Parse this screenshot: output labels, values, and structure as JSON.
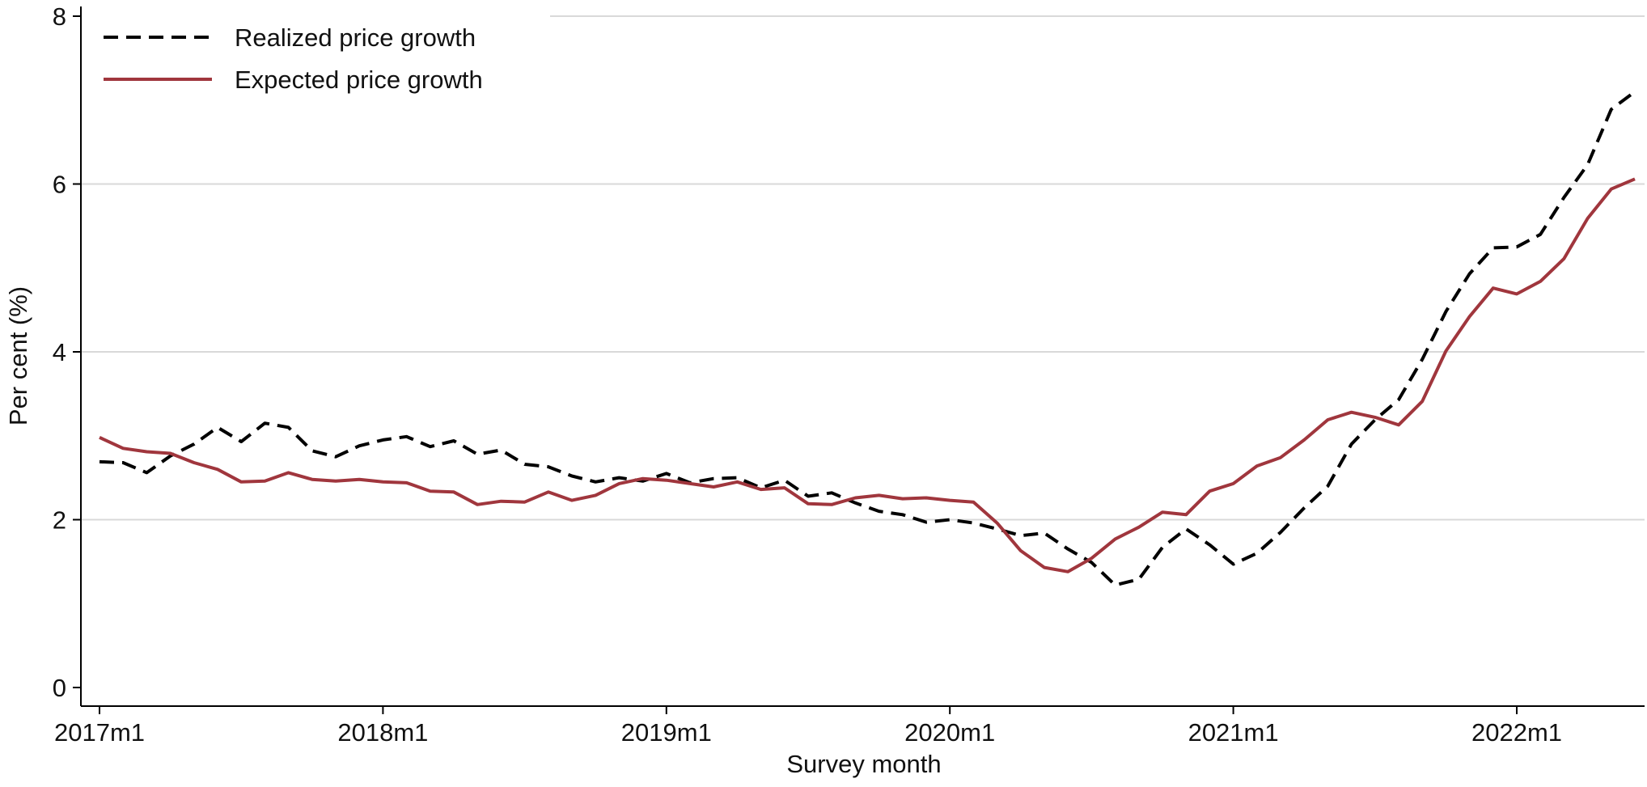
{
  "chart_data": {
    "type": "line",
    "title": "",
    "xlabel": "Survey month",
    "ylabel": "Per cent (%)",
    "ylim": [
      0,
      8
    ],
    "yticks": [
      0,
      2,
      4,
      6,
      8
    ],
    "xlim": [
      "2017-01",
      "2022-06"
    ],
    "xticks": [
      {
        "value": "2017-01",
        "label": "2017m1"
      },
      {
        "value": "2018-01",
        "label": "2018m1"
      },
      {
        "value": "2019-01",
        "label": "2019m1"
      },
      {
        "value": "2020-01",
        "label": "2020m1"
      },
      {
        "value": "2021-01",
        "label": "2021m1"
      },
      {
        "value": "2022-01",
        "label": "2022m1"
      }
    ],
    "grid": "horizontal",
    "legend_position": "top-left",
    "x": [
      "2017-01",
      "2017-02",
      "2017-03",
      "2017-04",
      "2017-05",
      "2017-06",
      "2017-07",
      "2017-08",
      "2017-09",
      "2017-10",
      "2017-11",
      "2017-12",
      "2018-01",
      "2018-02",
      "2018-03",
      "2018-04",
      "2018-05",
      "2018-06",
      "2018-07",
      "2018-08",
      "2018-09",
      "2018-10",
      "2018-11",
      "2018-12",
      "2019-01",
      "2019-02",
      "2019-03",
      "2019-04",
      "2019-05",
      "2019-06",
      "2019-07",
      "2019-08",
      "2019-09",
      "2019-10",
      "2019-11",
      "2019-12",
      "2020-01",
      "2020-02",
      "2020-03",
      "2020-04",
      "2020-05",
      "2020-06",
      "2020-07",
      "2020-08",
      "2020-09",
      "2020-10",
      "2020-11",
      "2020-12",
      "2021-01",
      "2021-02",
      "2021-03",
      "2021-04",
      "2021-05",
      "2021-06",
      "2021-07",
      "2021-08",
      "2021-09",
      "2021-10",
      "2021-11",
      "2021-12",
      "2022-01",
      "2022-02",
      "2022-03",
      "2022-04",
      "2022-05",
      "2022-06"
    ],
    "series": [
      {
        "name": "Realized price growth",
        "color": "#000000",
        "dash": "dashed",
        "values": [
          2.69,
          2.68,
          2.56,
          2.76,
          2.9,
          3.1,
          2.93,
          3.15,
          3.1,
          2.82,
          2.75,
          2.88,
          2.95,
          2.99,
          2.87,
          2.94,
          2.78,
          2.83,
          2.66,
          2.63,
          2.52,
          2.45,
          2.5,
          2.46,
          2.55,
          2.44,
          2.49,
          2.5,
          2.38,
          2.47,
          2.28,
          2.32,
          2.2,
          2.1,
          2.06,
          1.97,
          2.0,
          1.96,
          1.89,
          1.81,
          1.84,
          1.65,
          1.49,
          1.22,
          1.29,
          1.67,
          1.89,
          1.7,
          1.47,
          1.6,
          1.85,
          2.14,
          2.4,
          2.9,
          3.19,
          3.43,
          3.91,
          4.48,
          4.93,
          5.24,
          5.25,
          5.4,
          5.84,
          6.23,
          6.89,
          7.1
        ]
      },
      {
        "name": "Expected price growth",
        "color": "#a0363d",
        "dash": "solid",
        "values": [
          2.98,
          2.85,
          2.81,
          2.79,
          2.68,
          2.6,
          2.45,
          2.46,
          2.56,
          2.48,
          2.46,
          2.48,
          2.45,
          2.44,
          2.34,
          2.33,
          2.18,
          2.22,
          2.21,
          2.33,
          2.23,
          2.29,
          2.43,
          2.49,
          2.47,
          2.43,
          2.39,
          2.45,
          2.36,
          2.38,
          2.19,
          2.18,
          2.26,
          2.29,
          2.25,
          2.26,
          2.23,
          2.21,
          1.96,
          1.63,
          1.43,
          1.38,
          1.54,
          1.77,
          1.91,
          2.09,
          2.06,
          2.34,
          2.43,
          2.64,
          2.74,
          2.95,
          3.19,
          3.28,
          3.22,
          3.13,
          3.41,
          4.01,
          4.42,
          4.76,
          4.69,
          4.84,
          5.11,
          5.59,
          5.94,
          6.06
        ]
      }
    ]
  }
}
